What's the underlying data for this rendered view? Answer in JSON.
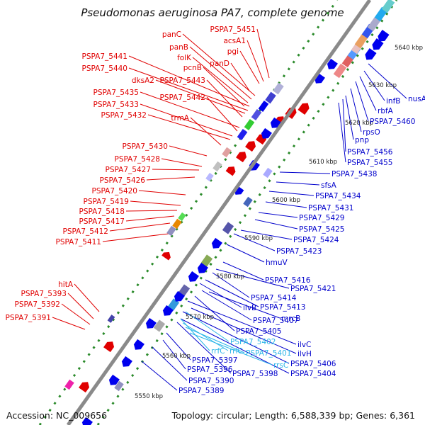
{
  "title": "Pseudomonas aeruginosa PA7, complete genome",
  "footer": {
    "accession": "Accession: NC_009656",
    "topology": "Topology: circular; Length: 6,588,339 bp; Genes: 6,361"
  },
  "kbp_ticks": [
    "5640 kbp",
    "5630 kbp",
    "5620 kbp",
    "5610 kbp",
    "5600 kbp",
    "5590 kbp",
    "5580 kbp",
    "5570 kbp",
    "5560 kbp",
    "5550 kbp"
  ],
  "colors": {
    "left_labels": "#e00000",
    "right_labels": "#0000cc",
    "rna_labels": "#2ab5e8",
    "backbone": "#888888",
    "green_dots": "#2a8a2a"
  },
  "left_labels": [
    "PSPA7_5451",
    "acsA1",
    "pgi",
    "panC",
    "panB",
    "folK",
    "pcnB",
    "panD",
    "PSPA7_5441",
    "PSPA7_5440",
    "dksA2",
    "PSPA7_5443",
    "PSPA7_5435",
    "PSPA7_5442",
    "PSPA7_5433",
    "PSPA7_5432",
    "trmA",
    "PSPA7_5430",
    "PSPA7_5428",
    "PSPA7_5427",
    "PSPA7_5426",
    "PSPA7_5420",
    "PSPA7_5419",
    "PSPA7_5418",
    "PSPA7_5417",
    "PSPA7_5412",
    "PSPA7_5411",
    "hitA",
    "PSPA7_5393",
    "PSPA7_5392",
    "PSPA7_5391"
  ],
  "right_labels": [
    "nusA",
    "infB",
    "rbfA",
    "PSPA7_5460",
    "rpsO",
    "pnp",
    "PSPA7_5456",
    "PSPA7_5455",
    "PSPA7_5438",
    "sfsA",
    "PSPA7_5434",
    "PSPA7_5431",
    "PSPA7_5429",
    "PSPA7_5425",
    "PSPA7_5424",
    "PSPA7_5423",
    "hmuV",
    "PSPA7_5416",
    "PSPA7_5421",
    "PSPA7_5414",
    "PSPA7_5413",
    "ilvB",
    "PSPA7_5407",
    "mrcB",
    "PSPA7_5405",
    "ilvC",
    "ilvH",
    "PSPA7_5406",
    "PSPA7_5404",
    "PSPA7_5398",
    "PSPA7_5397",
    "PSPA7_5396",
    "PSPA7_5390",
    "PSPA7_5389"
  ],
  "rna_labels": [
    "PSPA7_5402",
    "rrfC",
    "rrlC",
    "PSPA7_5401",
    "rrsC"
  ]
}
